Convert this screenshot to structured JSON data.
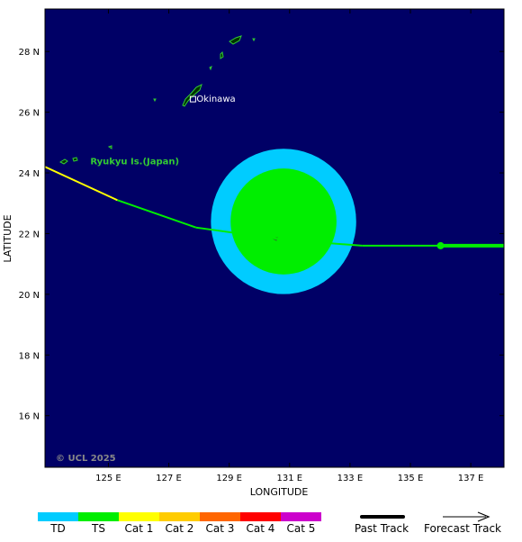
{
  "map": {
    "xlabel": "LONGITUDE",
    "ylabel": "LATITUDE",
    "lon_range": [
      122.9,
      138.1
    ],
    "lat_range": [
      14.3,
      29.4
    ],
    "ocean_color": "#000066",
    "coast_color": "#33cc33",
    "copyright": "© UCL 2025",
    "lon_ticks": [
      {
        "value": 125,
        "label": "125 E"
      },
      {
        "value": 127,
        "label": "127 E"
      },
      {
        "value": 129,
        "label": "129 E"
      },
      {
        "value": 131,
        "label": "131 E"
      },
      {
        "value": 133,
        "label": "133 E"
      },
      {
        "value": 135,
        "label": "135 E"
      },
      {
        "value": 137,
        "label": "137 E"
      }
    ],
    "lat_ticks": [
      {
        "value": 16,
        "label": "16 N"
      },
      {
        "value": 18,
        "label": "18 N"
      },
      {
        "value": 20,
        "label": "20 N"
      },
      {
        "value": 22,
        "label": "22 N"
      },
      {
        "value": 24,
        "label": "24 N"
      },
      {
        "value": 26,
        "label": "26 N"
      },
      {
        "value": 28,
        "label": "28 N"
      }
    ],
    "places": [
      {
        "name": "Okinawa",
        "lon": 127.8,
        "lat": 26.4,
        "color": "#ffffff"
      },
      {
        "name": "Ryukyu Is.(Japan)",
        "lon": 124.4,
        "lat": 24.4,
        "color": "#33cc33"
      }
    ]
  },
  "wind_field": {
    "center": {
      "lon": 130.8,
      "lat": 22.4
    },
    "outer_radius_deg": 2.4,
    "inner_radius_deg": 1.75,
    "outer_color": "#00ccff",
    "inner_color": "#00ee00"
  },
  "track": {
    "past": [
      {
        "lon": 122.9,
        "lat": 24.2,
        "color": "#00ee00"
      },
      {
        "lon": 125.3,
        "lat": 23.1,
        "color": "#ffff00"
      },
      {
        "lon": 127.9,
        "lat": 22.2,
        "color": "#00ee00"
      },
      {
        "lon": 130.8,
        "lat": 21.8,
        "color": "#00ee00"
      },
      {
        "lon": 133.4,
        "lat": 21.6,
        "color": "#00ee00"
      },
      {
        "lon": 136.0,
        "lat": 21.6,
        "color": "#00ee00"
      },
      {
        "lon": 138.1,
        "lat": 21.6,
        "color": "#00ee00"
      }
    ],
    "current_position": {
      "lon": 136.0,
      "lat": 21.6,
      "color": "#00ee00"
    }
  },
  "legend": {
    "categories": [
      {
        "label": "TD",
        "color": "#00ccff"
      },
      {
        "label": "TS",
        "color": "#00ee00"
      },
      {
        "label": "Cat 1",
        "color": "#ffff00"
      },
      {
        "label": "Cat 2",
        "color": "#ffcc00"
      },
      {
        "label": "Cat 3",
        "color": "#ff6600"
      },
      {
        "label": "Cat 4",
        "color": "#ff0000"
      },
      {
        "label": "Cat 5",
        "color": "#cc00cc"
      }
    ],
    "past_track_label": "Past Track",
    "forecast_track_label": "Forecast Track"
  }
}
